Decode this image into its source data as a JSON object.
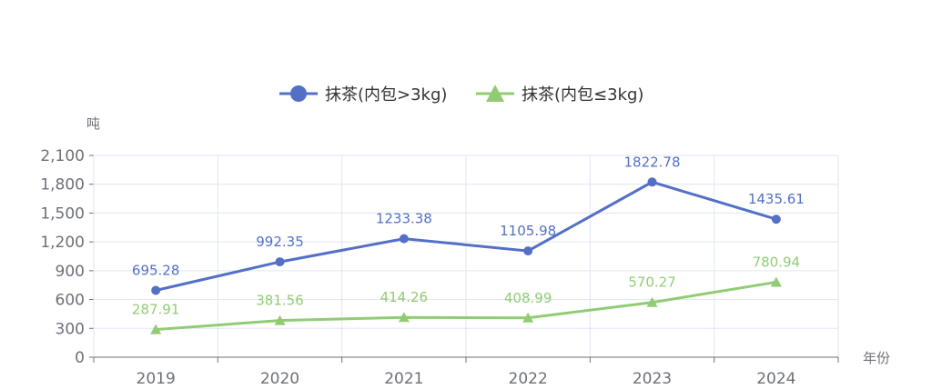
{
  "chart_data": {
    "type": "line",
    "categories": [
      "2019",
      "2020",
      "2021",
      "2022",
      "2023",
      "2024"
    ],
    "series": [
      {
        "name": "抹茶(内包>3kg)",
        "values": [
          695.28,
          992.35,
          1233.38,
          1105.98,
          1822.78,
          1435.61
        ],
        "color": "#5470c6",
        "marker": "circle"
      },
      {
        "name": "抹茶(内包≤3kg)",
        "values": [
          287.91,
          381.56,
          414.26,
          408.99,
          570.27,
          780.94
        ],
        "color": "#91cc75",
        "marker": "triangle"
      }
    ],
    "xlabel": "年份",
    "ylabel": "吨",
    "ylim": [
      0,
      2100
    ],
    "yticks": [
      "0",
      "300",
      "600",
      "900",
      "1,200",
      "1,500",
      "1,800",
      "2,100"
    ],
    "grid": true,
    "legend_position": "top-center"
  }
}
